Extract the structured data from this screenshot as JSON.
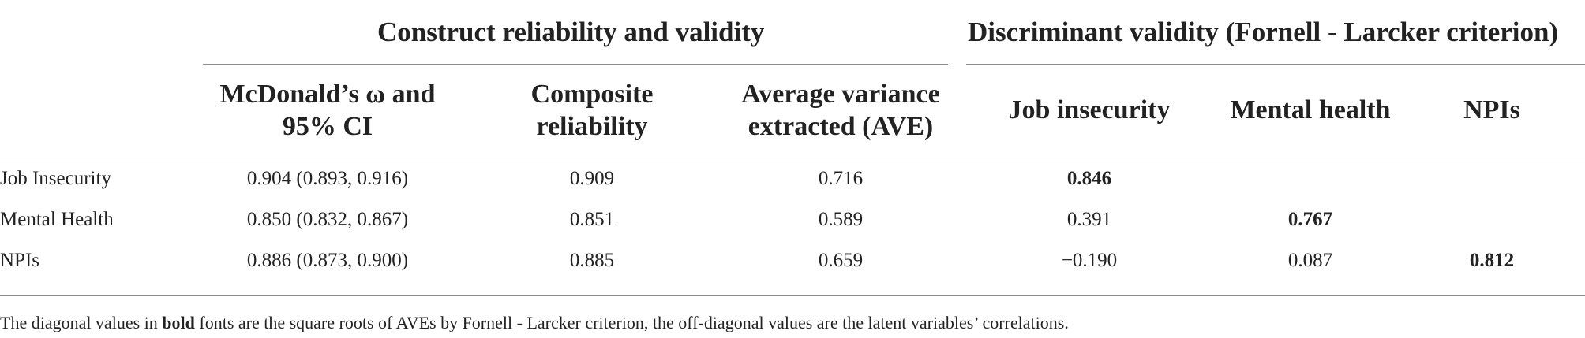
{
  "group_headers": {
    "construct": "Construct reliability and validity",
    "discriminant": "Discriminant validity (Fornell - Larcker criterion)"
  },
  "columns": {
    "omega": [
      "McDonald’s ω and",
      "95% CI"
    ],
    "composite": [
      "Composite",
      "reliability"
    ],
    "ave": [
      "Average variance",
      "extracted (AVE)"
    ],
    "job": "Job insecurity",
    "mental": "Mental health",
    "npis": "NPIs"
  },
  "rows": [
    {
      "label": "Job Insecurity",
      "omega": "0.904 (0.893, 0.916)",
      "composite": "0.909",
      "ave": "0.716",
      "job": "0.846",
      "mental": "",
      "npis": ""
    },
    {
      "label": "Mental Health",
      "omega": "0.850 (0.832, 0.867)",
      "composite": "0.851",
      "ave": "0.589",
      "job": "0.391",
      "mental": "0.767",
      "npis": ""
    },
    {
      "label": "NPIs",
      "omega": "0.886 (0.873, 0.900)",
      "composite": "0.885",
      "ave": "0.659",
      "job": "−0.190",
      "mental": "0.087",
      "npis": "0.812"
    }
  ],
  "footnote": {
    "before": "The diagonal values in ",
    "bold": "bold",
    "after": " fonts are the square roots of AVEs by Fornell - Larcker criterion, the off-diagonal values are the latent variables’ correlations."
  }
}
